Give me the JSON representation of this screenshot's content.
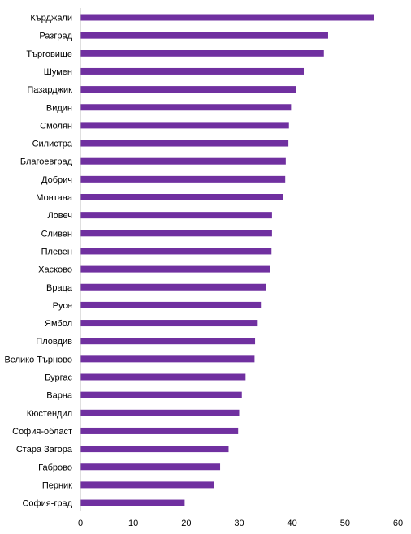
{
  "chart_data": {
    "type": "bar",
    "orientation": "horizontal",
    "title": "",
    "xlabel": "",
    "ylabel": "",
    "xlim": [
      0,
      60
    ],
    "x_ticks": [
      0,
      10,
      20,
      30,
      40,
      50,
      60
    ],
    "grid": false,
    "legend": "none",
    "bar_color": "#7030A0",
    "axis_color": "#bfbfbf",
    "categories": [
      "Кърджали",
      "Разград",
      "Търговище",
      "Шумен",
      "Пазарджик",
      "Видин",
      "Смолян",
      "Силистра",
      "Благоевград",
      "Добрич",
      "Монтана",
      "Ловеч",
      "Сливен",
      "Плевен",
      "Хасково",
      "Враца",
      "Русе",
      "Ямбол",
      "Пловдив",
      "Велико Търново",
      "Бургас",
      "Варна",
      "Кюстендил",
      "София-област",
      "Стара Загора",
      "Габрово",
      "Перник",
      "София-град"
    ],
    "values": [
      55.5,
      46.8,
      46.0,
      42.2,
      40.8,
      39.8,
      39.4,
      39.3,
      38.8,
      38.7,
      38.3,
      36.2,
      36.2,
      36.1,
      35.9,
      35.1,
      34.1,
      33.5,
      33.0,
      32.9,
      31.2,
      30.5,
      30.0,
      29.8,
      28.0,
      26.4,
      25.2,
      19.7
    ]
  }
}
